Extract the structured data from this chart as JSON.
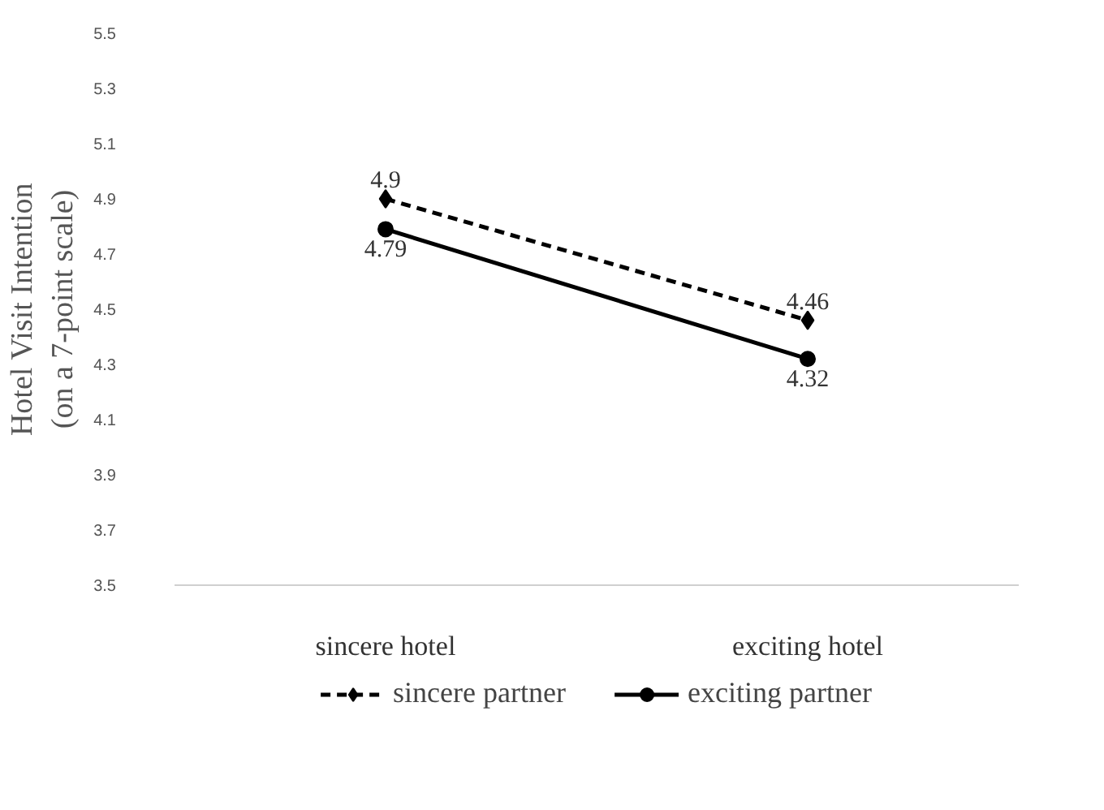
{
  "chart_data": {
    "type": "line",
    "ylabel": "Hotel Visit Intention\n(on a 7-point scale)",
    "categories": [
      "sincere hotel",
      "exciting hotel"
    ],
    "series": [
      {
        "name": "sincere partner",
        "color": "#000000",
        "values": [
          4.9,
          4.46
        ],
        "marker": "diamond",
        "line_style": "dashed"
      },
      {
        "name": "exciting partner",
        "color": "#000000",
        "values": [
          4.79,
          4.32
        ],
        "marker": "circle",
        "line_style": "solid"
      }
    ],
    "ylim": [
      3.5,
      5.5
    ],
    "yticks": [
      3.5,
      3.7,
      3.9,
      4.1,
      4.3,
      4.5,
      4.7,
      4.9,
      5.1,
      5.3,
      5.5
    ],
    "data_labels": true,
    "grid": false,
    "legend": "bottom"
  }
}
